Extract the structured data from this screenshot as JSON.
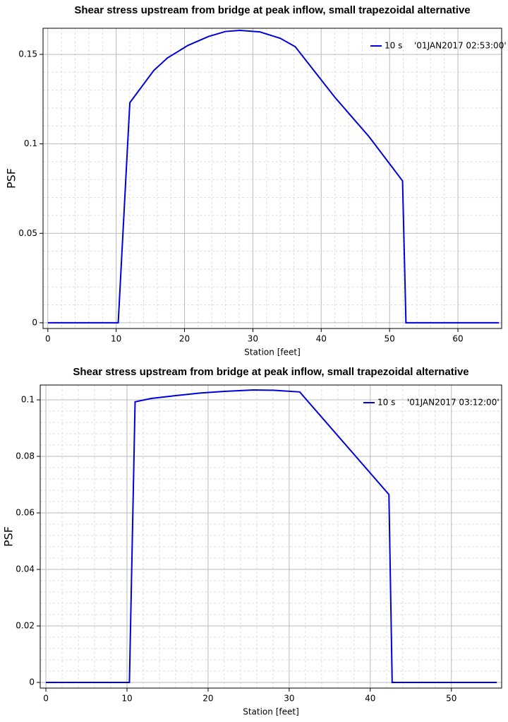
{
  "chart_data": [
    {
      "type": "line",
      "title": "Shear stress upstream from bridge at peak inflow, small trapezoidal alternative",
      "x_label": "Station [feet]",
      "y_label": "PSF",
      "x": [
        0,
        10.3,
        12,
        15.5,
        17.5,
        20.5,
        23.5,
        26,
        28.1,
        31,
        34,
        36.2,
        42,
        47,
        51.9,
        52.4,
        66
      ],
      "series": [
        {
          "name": "10 s",
          "legend_label": "'01JAN2017 02:53:00'",
          "color": "#0000dd",
          "values": [
            0,
            0,
            0.123,
            0.141,
            0.148,
            0.155,
            0.16,
            0.1628,
            0.1634,
            0.1626,
            0.159,
            0.1543,
            0.126,
            0.104,
            0.0793,
            0,
            0
          ]
        }
      ],
      "xlim": [
        -0.7,
        66.4
      ],
      "ylim": [
        -0.0032,
        0.1646
      ],
      "xticks": [
        0,
        10,
        20,
        30,
        40,
        50,
        60
      ],
      "yticks": [
        0,
        0.05,
        0.1,
        0.15
      ],
      "grid": true,
      "legend": "upper right"
    },
    {
      "type": "line",
      "title": "Shear stress upstream from bridge at peak inflow, small trapezoidal alternative",
      "x_label": "Station [feet]",
      "y_label": "PSF",
      "x": [
        0,
        10.3,
        11,
        13,
        16,
        19,
        22,
        25.6,
        28,
        31.3,
        42.3,
        42.7,
        55.6
      ],
      "series": [
        {
          "name": "10 s",
          "legend_label": "'01JAN2017 03:12:00'",
          "color": "#0000dd",
          "values": [
            0,
            0,
            0.0993,
            0.1005,
            0.1015,
            0.1024,
            0.103,
            0.1035,
            0.1034,
            0.1028,
            0.0665,
            0,
            0
          ]
        }
      ],
      "xlim": [
        -0.7,
        56.2
      ],
      "ylim": [
        -0.002,
        0.10525
      ],
      "xticks": [
        0,
        10,
        20,
        30,
        40,
        50
      ],
      "yticks": [
        0,
        0.02,
        0.04,
        0.06,
        0.08,
        0.1
      ],
      "grid": true,
      "legend": "upper right"
    }
  ]
}
